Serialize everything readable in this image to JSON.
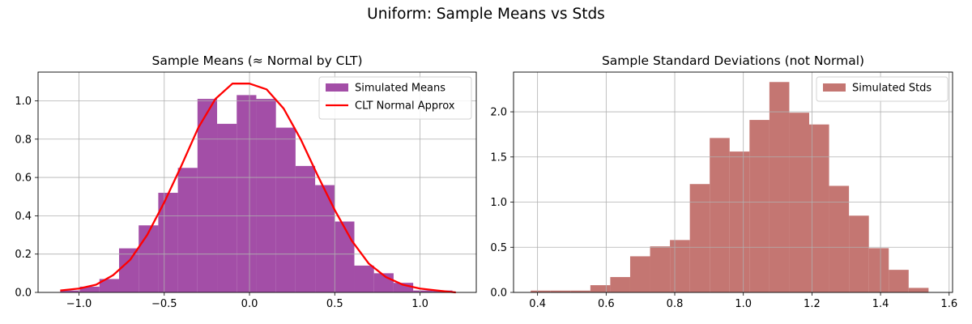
{
  "figure": {
    "suptitle": "Uniform: Sample Means vs Stds"
  },
  "chart_data": [
    {
      "type": "bar",
      "title": "Sample Means (≈ Normal by CLT)",
      "xlabel": "",
      "ylabel": "",
      "xlim": [
        -1.24,
        1.33
      ],
      "ylim": [
        0,
        1.15
      ],
      "xticks": [
        -1.0,
        -0.5,
        0.0,
        0.5,
        1.0
      ],
      "xtick_labels": [
        "−1.0",
        "−0.5",
        "0.0",
        "0.5",
        "1.0"
      ],
      "yticks": [
        0.0,
        0.2,
        0.4,
        0.6,
        0.8,
        1.0
      ],
      "ytick_labels": [
        "0.0",
        "0.2",
        "0.4",
        "0.6",
        "0.8",
        "1.0"
      ],
      "grid": true,
      "legend_position": "top-right",
      "series": [
        {
          "name": "Simulated Means",
          "kind": "histogram",
          "color": "#9b3fa0",
          "bin_edges": [
            -1.11,
            -0.995,
            -0.88,
            -0.765,
            -0.65,
            -0.535,
            -0.42,
            -0.305,
            -0.19,
            -0.075,
            0.04,
            0.155,
            0.27,
            0.385,
            0.5,
            0.615,
            0.73,
            0.845,
            0.96,
            1.075,
            1.19
          ],
          "values": [
            0.01,
            0.03,
            0.07,
            0.23,
            0.35,
            0.52,
            0.65,
            1.01,
            0.88,
            1.03,
            1.01,
            0.86,
            0.66,
            0.56,
            0.37,
            0.14,
            0.1,
            0.05,
            0.01,
            0.01
          ]
        },
        {
          "name": "CLT Normal Approx",
          "kind": "line",
          "color": "#ff0000",
          "x": [
            -1.11,
            -1.0,
            -0.9,
            -0.8,
            -0.7,
            -0.6,
            -0.5,
            -0.4,
            -0.3,
            -0.2,
            -0.1,
            0.0,
            0.1,
            0.2,
            0.3,
            0.4,
            0.5,
            0.6,
            0.7,
            0.8,
            0.9,
            1.0,
            1.1,
            1.21
          ],
          "y": [
            0.01,
            0.02,
            0.04,
            0.09,
            0.17,
            0.3,
            0.47,
            0.66,
            0.86,
            1.01,
            1.09,
            1.09,
            1.06,
            0.96,
            0.8,
            0.61,
            0.43,
            0.27,
            0.15,
            0.08,
            0.04,
            0.02,
            0.01,
            0.0
          ]
        }
      ]
    },
    {
      "type": "bar",
      "title": "Sample Standard Deviations (not Normal)",
      "xlabel": "",
      "ylabel": "",
      "xlim": [
        0.33,
        1.61
      ],
      "ylim": [
        0,
        2.44
      ],
      "xticks": [
        0.4,
        0.6,
        0.8,
        1.0,
        1.2,
        1.4,
        1.6
      ],
      "xtick_labels": [
        "0.4",
        "0.6",
        "0.8",
        "1.0",
        "1.2",
        "1.4",
        "1.6"
      ],
      "yticks": [
        0.0,
        0.5,
        1.0,
        1.5,
        2.0
      ],
      "ytick_labels": [
        "0.0",
        "0.5",
        "1.0",
        "1.5",
        "2.0"
      ],
      "grid": true,
      "legend_position": "top-right",
      "series": [
        {
          "name": "Simulated Stds",
          "kind": "histogram",
          "color": "#bf6a66",
          "bin_edges": [
            0.38,
            0.438,
            0.496,
            0.554,
            0.612,
            0.67,
            0.728,
            0.786,
            0.844,
            0.902,
            0.96,
            1.018,
            1.076,
            1.134,
            1.192,
            1.25,
            1.308,
            1.366,
            1.424,
            1.482,
            1.54
          ],
          "values": [
            0.02,
            0.02,
            0.02,
            0.08,
            0.17,
            0.4,
            0.51,
            0.58,
            1.2,
            1.71,
            1.56,
            1.91,
            2.33,
            1.99,
            1.86,
            1.18,
            0.85,
            0.49,
            0.25,
            0.05
          ]
        }
      ]
    }
  ]
}
